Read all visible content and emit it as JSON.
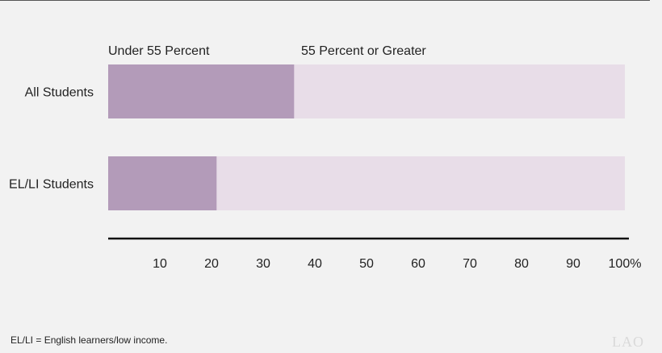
{
  "chart_data": {
    "type": "bar",
    "stacked": true,
    "orientation": "horizontal",
    "categories": [
      "All Students",
      "EL/LI Students"
    ],
    "series": [
      {
        "name": "Under 55 Percent",
        "values": [
          36,
          21
        ],
        "color": "#b39bb9"
      },
      {
        "name": "55 Percent or Greater",
        "values": [
          64,
          79
        ],
        "color": "#e8dde8"
      }
    ],
    "xticks": [
      "10",
      "20",
      "30",
      "40",
      "50",
      "60",
      "70",
      "80",
      "90",
      "100%"
    ],
    "xlim": [
      0,
      100
    ],
    "grid": false,
    "legend": "top"
  },
  "footnote": "EL/LI = English learners/low income.",
  "logo": "LAO"
}
